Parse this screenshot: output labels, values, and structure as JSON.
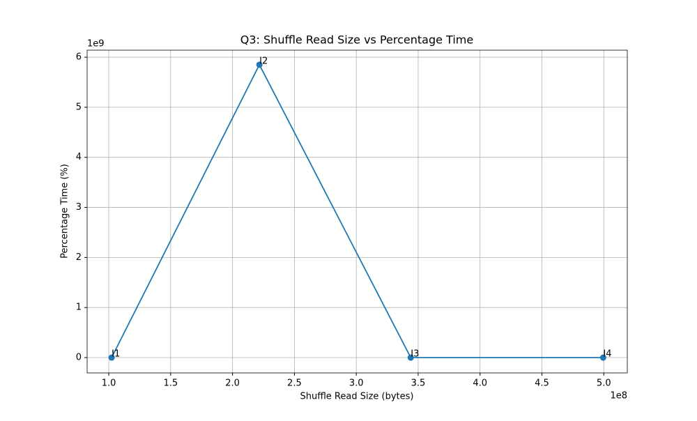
{
  "chart_data": {
    "type": "line",
    "title": "Q3: Shuffle Read Size vs Percentage Time",
    "x_label": "Shuffle Read Size (bytes)",
    "y_label": "Percentage Time (%)",
    "x_offset_label": "1e8",
    "y_offset_label": "1e9",
    "x": [
      102300000,
      221700000,
      344000000,
      499500000
    ],
    "values": [
      0,
      5850000000,
      0,
      0
    ],
    "point_labels": [
      "I1",
      "I2",
      "I3",
      "I4"
    ],
    "color": "#1f77b4",
    "xlim": [
      82500000,
      519000000
    ],
    "ylim": [
      -306000000,
      6140000000
    ],
    "xticks": [
      {
        "value": 100000000,
        "label": "1.0"
      },
      {
        "value": 150000000,
        "label": "1.5"
      },
      {
        "value": 200000000,
        "label": "2.0"
      },
      {
        "value": 250000000,
        "label": "2.5"
      },
      {
        "value": 300000000,
        "label": "3.0"
      },
      {
        "value": 350000000,
        "label": "3.5"
      },
      {
        "value": 400000000,
        "label": "4.0"
      },
      {
        "value": 450000000,
        "label": "4.5"
      },
      {
        "value": 500000000,
        "label": "5.0"
      }
    ],
    "yticks": [
      {
        "value": 0,
        "label": "0"
      },
      {
        "value": 1000000000,
        "label": "1"
      },
      {
        "value": 2000000000,
        "label": "2"
      },
      {
        "value": 3000000000,
        "label": "3"
      },
      {
        "value": 4000000000,
        "label": "4"
      },
      {
        "value": 5000000000,
        "label": "5"
      },
      {
        "value": 6000000000,
        "label": "6"
      }
    ],
    "grid": true
  }
}
